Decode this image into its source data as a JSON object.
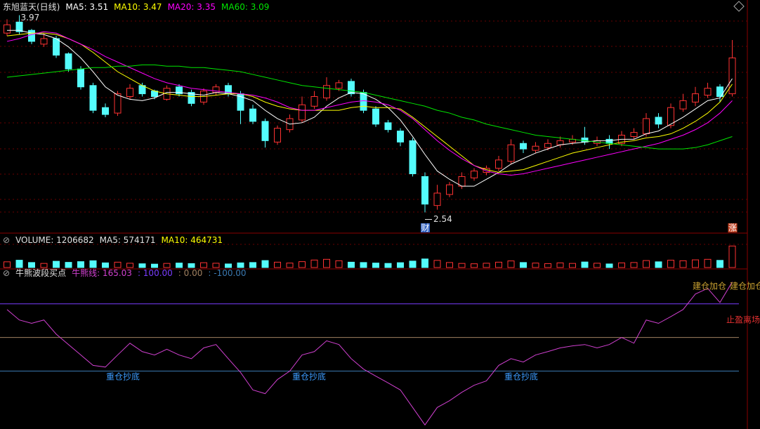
{
  "chart_data": {
    "type": "candlestick",
    "title": "东旭蓝天(日线)",
    "ylim": [
      2.4,
      4.08
    ],
    "up_color": "#ff3232",
    "down_color": "#54fcfc",
    "open": [
      3.84,
      3.92,
      3.86,
      3.76,
      3.8,
      3.69,
      3.58,
      3.46,
      3.3,
      3.26,
      3.38,
      3.46,
      3.42,
      3.36,
      3.45,
      3.41,
      3.34,
      3.41,
      3.46,
      3.4,
      3.29,
      3.2,
      3.05,
      3.14,
      3.21,
      3.31,
      3.37,
      3.44,
      3.49,
      3.41,
      3.29,
      3.19,
      3.13,
      3.06,
      2.8,
      2.59,
      2.67,
      2.73,
      2.79,
      2.83,
      2.86,
      2.91,
      3.04,
      2.99,
      3.01,
      3.03,
      3.05,
      3.08,
      3.04,
      3.07,
      3.04,
      3.09,
      3.11,
      3.23,
      3.17,
      3.29,
      3.34,
      3.39,
      3.45,
      3.4
    ],
    "high": [
      3.94,
      3.97,
      3.87,
      3.84,
      3.82,
      3.7,
      3.6,
      3.48,
      3.33,
      3.42,
      3.47,
      3.48,
      3.43,
      3.46,
      3.47,
      3.43,
      3.44,
      3.47,
      3.48,
      3.42,
      3.32,
      3.22,
      3.17,
      3.25,
      3.38,
      3.42,
      3.52,
      3.5,
      3.51,
      3.43,
      3.31,
      3.21,
      3.15,
      3.08,
      2.83,
      2.74,
      2.76,
      2.83,
      2.86,
      2.88,
      2.95,
      3.07,
      3.06,
      3.05,
      3.07,
      3.09,
      3.1,
      3.16,
      3.09,
      3.1,
      3.13,
      3.15,
      3.26,
      3.26,
      3.33,
      3.4,
      3.45,
      3.48,
      3.47,
      3.79
    ],
    "low": [
      3.82,
      3.83,
      3.76,
      3.74,
      3.66,
      3.56,
      3.43,
      3.26,
      3.23,
      3.24,
      3.36,
      3.38,
      3.36,
      3.35,
      3.38,
      3.31,
      3.32,
      3.39,
      3.38,
      3.18,
      3.18,
      3.01,
      3.03,
      3.12,
      3.19,
      3.29,
      3.35,
      3.42,
      3.38,
      3.26,
      3.16,
      3.12,
      3.02,
      2.8,
      2.54,
      2.56,
      2.65,
      2.71,
      2.77,
      2.81,
      2.84,
      2.89,
      2.97,
      2.97,
      2.99,
      3.01,
      3.03,
      3.03,
      3.02,
      3.0,
      3.02,
      3.07,
      3.09,
      3.15,
      3.15,
      3.27,
      3.31,
      3.37,
      3.34,
      3.38
    ],
    "close": [
      3.9,
      3.85,
      3.78,
      3.8,
      3.68,
      3.58,
      3.45,
      3.28,
      3.25,
      3.4,
      3.44,
      3.4,
      3.38,
      3.44,
      3.4,
      3.33,
      3.42,
      3.45,
      3.4,
      3.28,
      3.2,
      3.06,
      3.15,
      3.22,
      3.32,
      3.38,
      3.46,
      3.48,
      3.4,
      3.28,
      3.18,
      3.14,
      3.05,
      2.82,
      2.6,
      2.68,
      2.74,
      2.8,
      2.84,
      2.86,
      2.92,
      3.03,
      3.0,
      3.02,
      3.04,
      3.06,
      3.07,
      3.05,
      3.06,
      3.04,
      3.1,
      3.12,
      3.22,
      3.18,
      3.3,
      3.35,
      3.4,
      3.44,
      3.38,
      3.66
    ],
    "series": [
      {
        "label": "MA5: 3.51",
        "color": "#ffffff",
        "values": [
          3.86,
          3.86,
          3.84,
          3.83,
          3.8,
          3.74,
          3.66,
          3.56,
          3.45,
          3.39,
          3.36,
          3.35,
          3.37,
          3.41,
          3.41,
          3.4,
          3.39,
          3.41,
          3.4,
          3.38,
          3.35,
          3.28,
          3.22,
          3.18,
          3.19,
          3.23,
          3.31,
          3.37,
          3.41,
          3.4,
          3.36,
          3.3,
          3.21,
          3.09,
          2.96,
          2.84,
          2.78,
          2.73,
          2.73,
          2.78,
          2.83,
          2.89,
          2.93,
          2.97,
          3.0,
          3.03,
          3.04,
          3.05,
          3.06,
          3.06,
          3.07,
          3.07,
          3.11,
          3.13,
          3.18,
          3.23,
          3.29,
          3.35,
          3.37,
          3.51
        ]
      },
      {
        "label": "MA10: 3.47",
        "color": "#ffff00",
        "values": [
          3.82,
          3.83,
          3.84,
          3.84,
          3.83,
          3.8,
          3.76,
          3.7,
          3.63,
          3.56,
          3.51,
          3.46,
          3.42,
          3.4,
          3.39,
          3.38,
          3.38,
          3.39,
          3.4,
          3.4,
          3.38,
          3.34,
          3.31,
          3.29,
          3.28,
          3.28,
          3.28,
          3.28,
          3.3,
          3.31,
          3.3,
          3.3,
          3.29,
          3.23,
          3.16,
          3.09,
          3.02,
          2.95,
          2.88,
          2.85,
          2.83,
          2.84,
          2.85,
          2.88,
          2.91,
          2.94,
          2.97,
          2.99,
          3.01,
          3.03,
          3.05,
          3.06,
          3.08,
          3.09,
          3.11,
          3.15,
          3.2,
          3.26,
          3.34,
          3.47
        ]
      },
      {
        "label": "MA20: 3.35",
        "color": "#ff00ff",
        "values": [
          3.78,
          3.8,
          3.83,
          3.85,
          3.84,
          3.8,
          3.76,
          3.72,
          3.67,
          3.63,
          3.59,
          3.55,
          3.51,
          3.48,
          3.46,
          3.44,
          3.43,
          3.42,
          3.41,
          3.4,
          3.39,
          3.37,
          3.34,
          3.3,
          3.28,
          3.28,
          3.3,
          3.32,
          3.34,
          3.35,
          3.34,
          3.32,
          3.28,
          3.22,
          3.14,
          3.06,
          2.99,
          2.93,
          2.88,
          2.84,
          2.82,
          2.81,
          2.82,
          2.84,
          2.86,
          2.88,
          2.9,
          2.92,
          2.94,
          2.96,
          2.98,
          3.0,
          3.02,
          3.04,
          3.07,
          3.1,
          3.14,
          3.19,
          3.26,
          3.35
        ]
      },
      {
        "label": "MA60: 3.09",
        "color": "#00e600",
        "values": [
          3.52,
          3.53,
          3.54,
          3.55,
          3.56,
          3.57,
          3.58,
          3.59,
          3.59,
          3.6,
          3.6,
          3.61,
          3.61,
          3.6,
          3.6,
          3.59,
          3.59,
          3.58,
          3.57,
          3.56,
          3.54,
          3.52,
          3.5,
          3.48,
          3.46,
          3.45,
          3.44,
          3.43,
          3.42,
          3.41,
          3.39,
          3.37,
          3.35,
          3.33,
          3.31,
          3.28,
          3.26,
          3.23,
          3.21,
          3.18,
          3.16,
          3.14,
          3.12,
          3.1,
          3.09,
          3.08,
          3.07,
          3.06,
          3.05,
          3.04,
          3.03,
          3.02,
          3.01,
          3.0,
          3.0,
          3.0,
          3.01,
          3.03,
          3.06,
          3.09
        ]
      }
    ],
    "price_tags": [
      "财",
      "涨"
    ],
    "volume_header": [
      "VOLUME: 1206682",
      "MA5: 574171",
      "MA10: 464731"
    ],
    "volume_ylim": [
      0,
      1300000
    ],
    "volume": [
      320000,
      410000,
      280000,
      230000,
      350000,
      290000,
      330000,
      380000,
      260000,
      300000,
      240000,
      210000,
      190000,
      230000,
      250000,
      220000,
      270000,
      240000,
      200000,
      260000,
      280000,
      390000,
      300000,
      250000,
      330000,
      420000,
      460000,
      380000,
      300000,
      280000,
      250000,
      230000,
      270000,
      360000,
      480000,
      400000,
      280000,
      230000,
      210000,
      240000,
      300000,
      370000,
      280000,
      250000,
      220000,
      260000,
      230000,
      310000,
      240000,
      200000,
      260000,
      280000,
      390000,
      320000,
      410000,
      380000,
      430000,
      460000,
      400000,
      1206682
    ],
    "indicator": {
      "title": "牛熊波段买点",
      "line_label": "牛熊线: 165.03",
      "color": "#d040d0",
      "ylim": [
        -270,
        190
      ],
      "levels": [
        100,
        0,
        -100
      ],
      "level_labels": [
        ": 100.00",
        ": 0.00",
        ": -100.00"
      ],
      "level_colors": [
        "#7a3cff",
        "#a08060",
        "#3a78b0"
      ],
      "values": [
        83,
        52,
        42,
        52,
        10,
        -21,
        -52,
        -83,
        -88,
        -52,
        -17,
        -42,
        -52,
        -35,
        -52,
        -63,
        -31,
        -21,
        -63,
        -104,
        -156,
        -167,
        -125,
        -100,
        -52,
        -42,
        -10,
        -21,
        -63,
        -94,
        -115,
        -135,
        -156,
        -208,
        -260,
        -208,
        -188,
        -163,
        -142,
        -129,
        -83,
        -63,
        -73,
        -52,
        -42,
        -31,
        -25,
        -21,
        -31,
        -21,
        0,
        -17,
        52,
        42,
        62,
        83,
        129,
        146,
        104,
        165.03
      ],
      "signals": [
        {
          "text": "重仓抄底",
          "color": "#3c9cff"
        },
        {
          "text": "重仓抄底",
          "color": "#3c9cff"
        },
        {
          "text": "重仓抄底",
          "color": "#3c9cff"
        },
        {
          "text": "建仓加仓",
          "color": "#c8a030"
        },
        {
          "text": "建仓加仓",
          "color": "#c8a030"
        },
        {
          "text": "止盈离场",
          "color": "#e03030"
        }
      ]
    }
  }
}
